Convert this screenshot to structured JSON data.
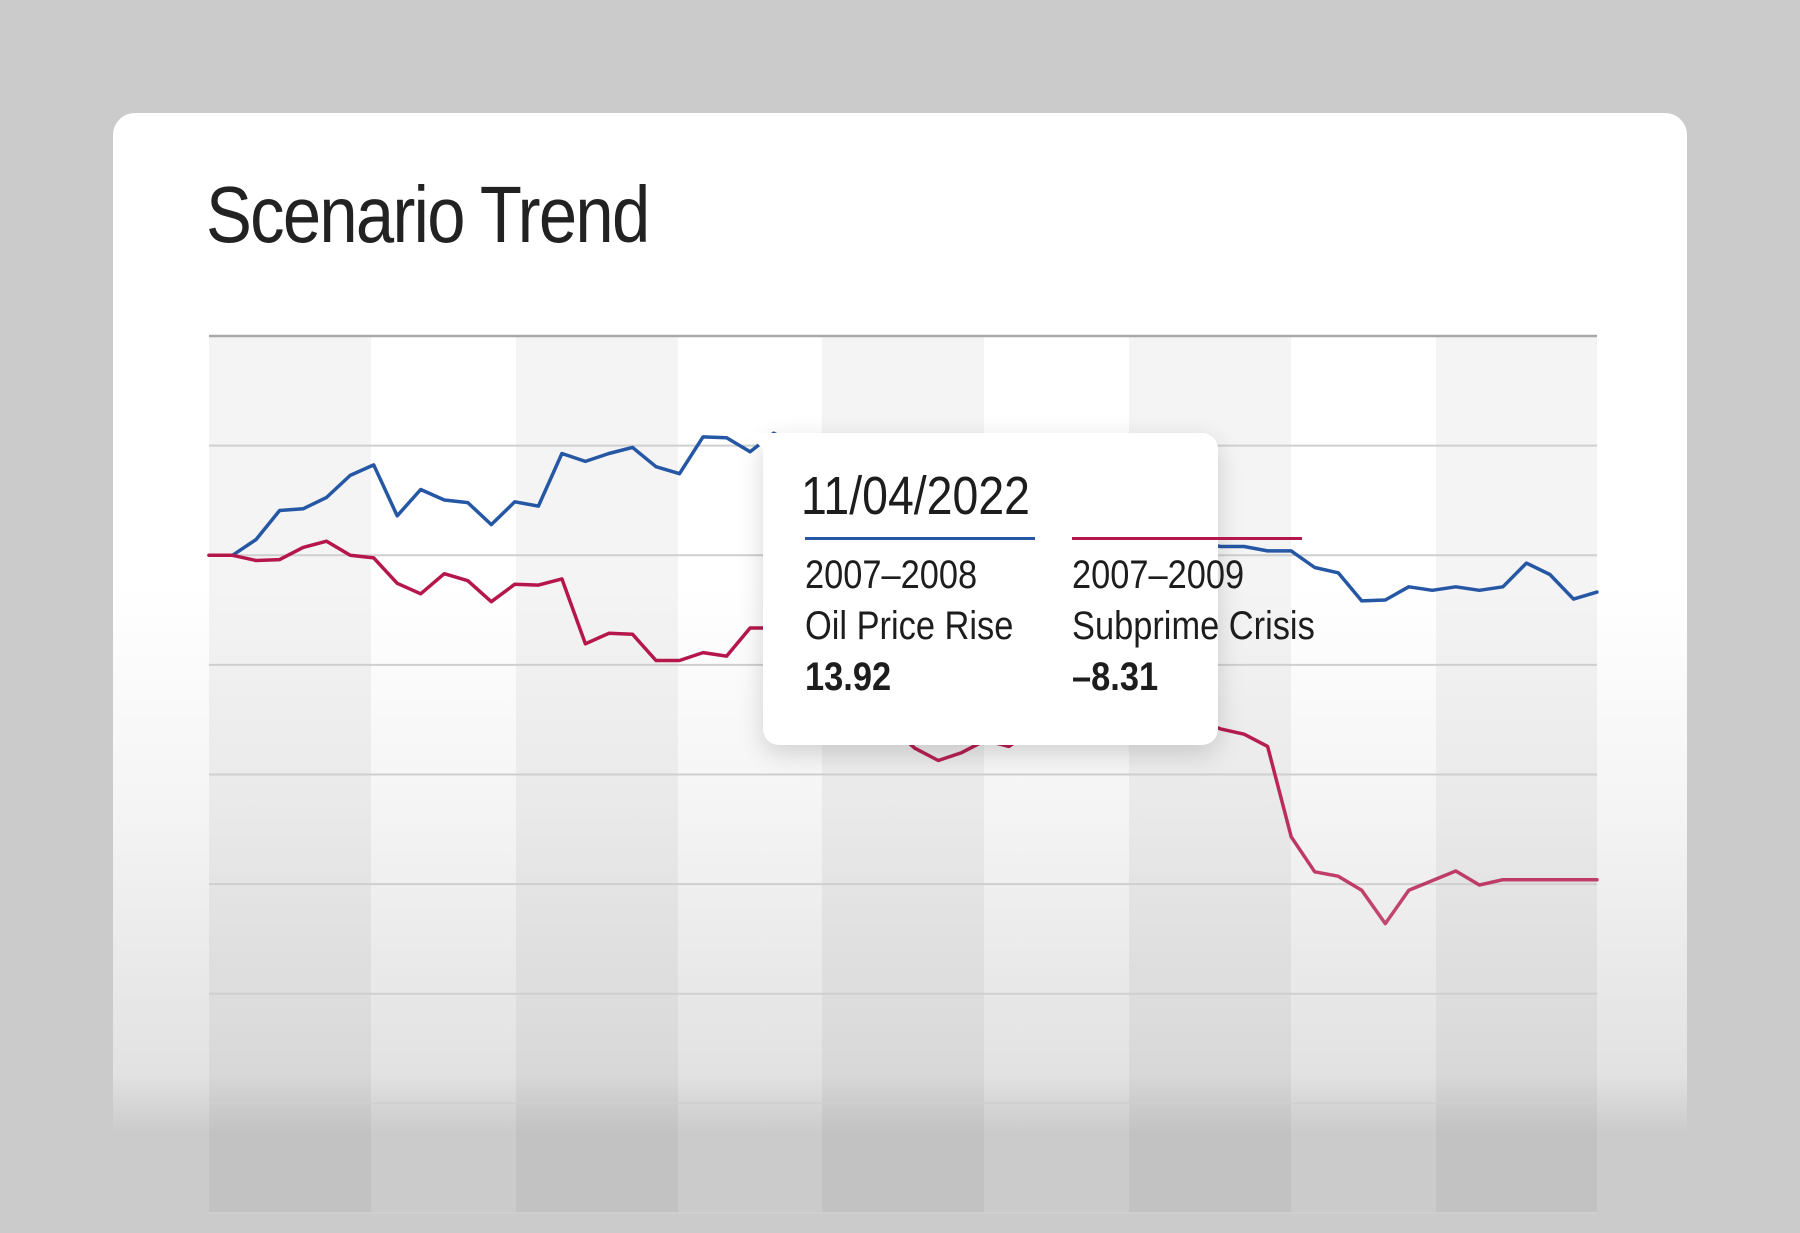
{
  "card": {
    "title": "Scenario Trend"
  },
  "chart_data": {
    "type": "line",
    "grid": true,
    "ylim": [
      -75,
      25
    ],
    "x": [
      0,
      1,
      2,
      3,
      4,
      5,
      6,
      7,
      8,
      9,
      10,
      11,
      12,
      13,
      14,
      15,
      16,
      17,
      18,
      19,
      20,
      21,
      22,
      23,
      24,
      25,
      26,
      27,
      28,
      29,
      30,
      31,
      32,
      33,
      34,
      35,
      36,
      37,
      38,
      39,
      40,
      41,
      42,
      43,
      44,
      45,
      46,
      47,
      48,
      49,
      50,
      51,
      52,
      53,
      54,
      55,
      56,
      57,
      58,
      59
    ],
    "series": [
      {
        "name": "2007–2008 Oil Price Rise",
        "color": "#2557a4",
        "values": [
          0.0,
          0.0,
          1.8,
          5.1,
          5.3,
          6.6,
          9.1,
          10.3,
          4.5,
          7.5,
          6.3,
          6.0,
          3.5,
          6.1,
          5.6,
          11.6,
          10.7,
          11.6,
          12.3,
          10.1,
          9.3,
          13.5,
          13.4,
          11.8,
          13.92,
          12.5,
          11.0,
          10.0,
          9.0,
          8.0,
          7.0,
          6.0,
          5.0,
          4.0,
          3.5,
          3.0,
          3.0,
          2.5,
          2.5,
          2.0,
          2.0,
          1.5,
          1.5,
          1.0,
          1.0,
          0.5,
          0.5,
          -1.4,
          -2.0,
          -5.2,
          -5.1,
          -3.6,
          -4.0,
          -3.6,
          -4.0,
          -3.6,
          -0.9,
          -2.2,
          -5.0,
          -4.2
        ]
      },
      {
        "name": "2007–2009 Subprime Crisis",
        "color": "#b5174a",
        "values": [
          0.0,
          0.0,
          -0.6,
          -0.5,
          0.9,
          1.6,
          0.0,
          -0.3,
          -3.2,
          -4.4,
          -2.1,
          -2.9,
          -5.3,
          -3.3,
          -3.4,
          -2.7,
          -10.1,
          -8.9,
          -9.0,
          -12.0,
          -12.0,
          -11.1,
          -11.5,
          -8.3,
          -8.31,
          -9.0,
          -13.0,
          -19.4,
          -20.0,
          -19.6,
          -22.0,
          -23.4,
          -22.5,
          -21.1,
          -21.8,
          -19.9,
          -19.1,
          -14.2,
          -13.8,
          -15.4,
          -14.5,
          -17.6,
          -18.8,
          -19.8,
          -20.4,
          -21.8,
          -32.1,
          -36.1,
          -36.6,
          -38.2,
          -42.0,
          -38.2,
          -37.1,
          -36.0,
          -37.6,
          -37.0,
          -37.0,
          -37.0,
          -37.0,
          -37.0
        ]
      }
    ]
  },
  "tooltip": {
    "date": "11/04/2022",
    "items": [
      {
        "period": "2007–2008",
        "label": "Oil Price Rise",
        "value": "13.92",
        "color": "#2557a4"
      },
      {
        "period": "2007–2009",
        "label": "Subprime Crisis",
        "value": "–8.31",
        "color": "#b5174a"
      }
    ]
  }
}
